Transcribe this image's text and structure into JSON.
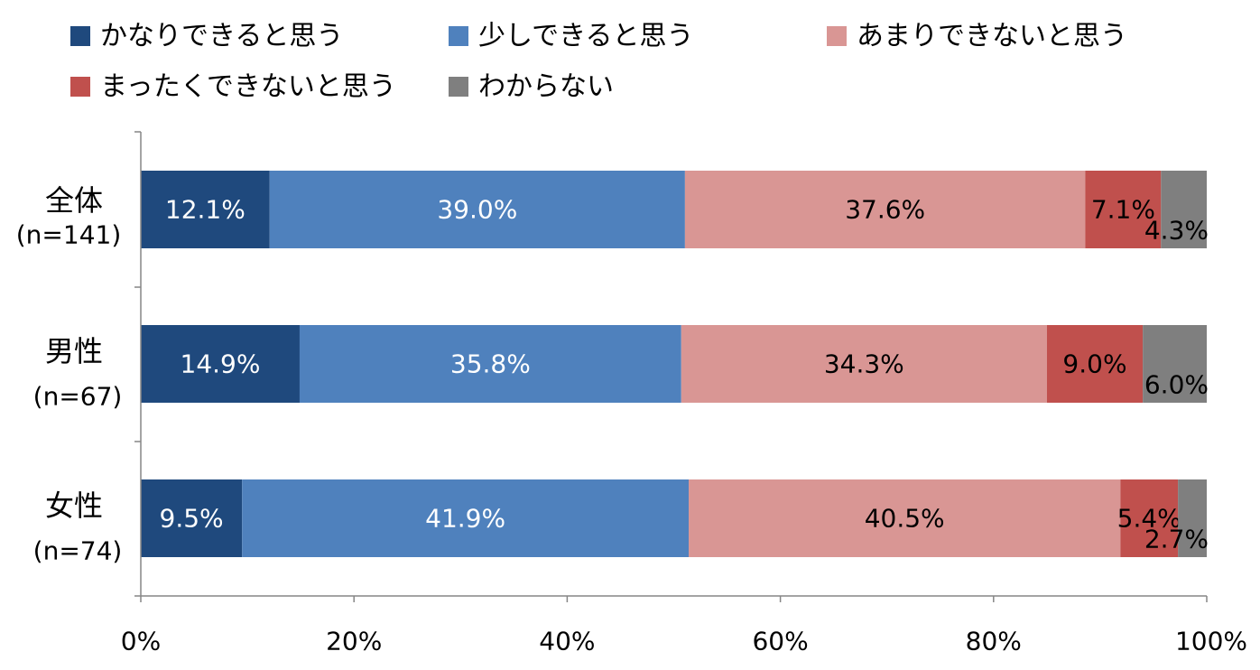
{
  "chart_data": {
    "type": "bar",
    "orientation": "horizontal",
    "stacked": "percent",
    "categories": [
      {
        "name": "全体",
        "n": "(n=141)"
      },
      {
        "name": "男性",
        "n": "(n=67)"
      },
      {
        "name": "女性",
        "n": "(n=74)"
      }
    ],
    "series": [
      {
        "name": "かなりできると思う",
        "color": "#1f497d",
        "label_color": "#ffffff",
        "values": [
          12.1,
          14.9,
          9.5
        ],
        "labels": [
          "12.1%",
          "14.9%",
          "9.5%"
        ]
      },
      {
        "name": "少しできると思う",
        "color": "#4f81bd",
        "label_color": "#ffffff",
        "values": [
          39.0,
          35.8,
          41.9
        ],
        "labels": [
          "39.0%",
          "35.8%",
          "41.9%"
        ]
      },
      {
        "name": "あまりできないと思う",
        "color": "#d99694",
        "label_color": "#000000",
        "values": [
          37.6,
          34.3,
          40.5
        ],
        "labels": [
          "37.6%",
          "34.3%",
          "40.5%"
        ]
      },
      {
        "name": "まったくできないと思う",
        "color": "#c0504d",
        "label_color": "#000000",
        "values": [
          7.1,
          9.0,
          5.4
        ],
        "labels": [
          "7.1%",
          "9.0%",
          "5.4%"
        ]
      },
      {
        "name": "わからない",
        "color": "#7f7f7f",
        "label_color": "#000000",
        "values": [
          4.3,
          6.0,
          2.7
        ],
        "labels": [
          "4.3%",
          "6.0%",
          "2.7%"
        ]
      }
    ],
    "x_ticks": [
      "0%",
      "20%",
      "40%",
      "60%",
      "80%",
      "100%"
    ],
    "xlim": [
      0,
      100
    ],
    "legend_position": "top",
    "grid": false
  }
}
